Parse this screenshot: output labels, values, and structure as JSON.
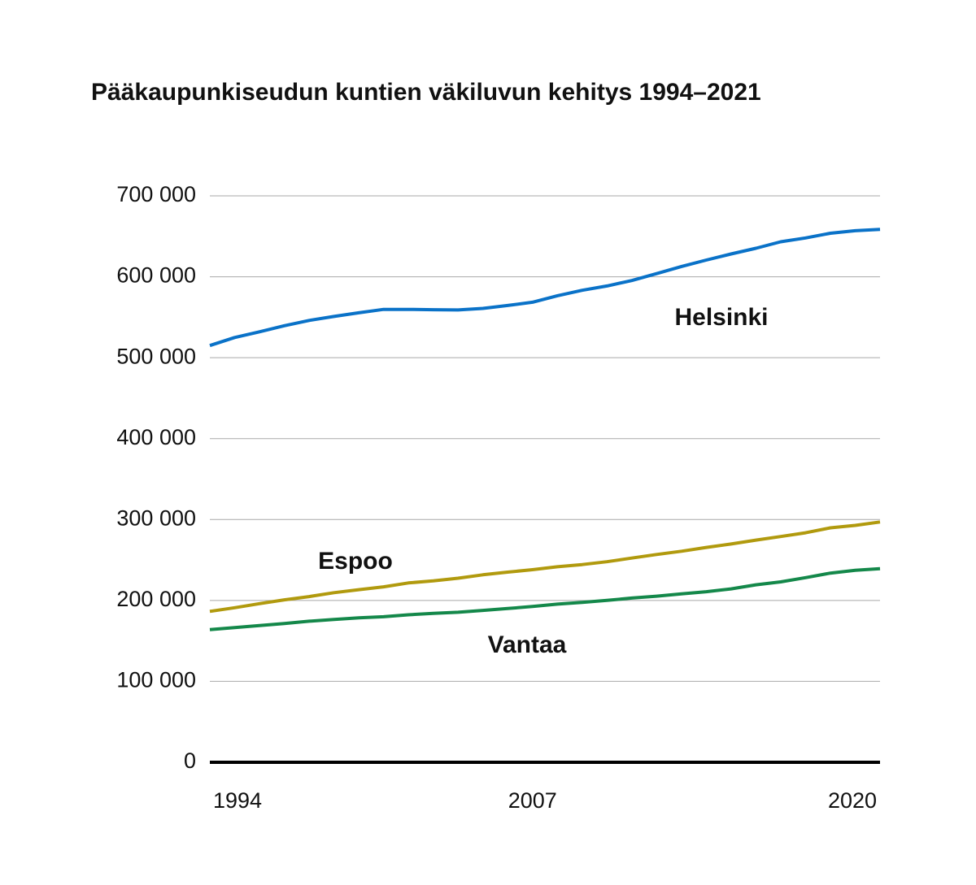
{
  "chart_data": {
    "type": "line",
    "title": "Pääkaupunkiseudun kuntien väkiluvun kehitys 1994–2021",
    "x": [
      1994,
      1995,
      1996,
      1997,
      1998,
      1999,
      2000,
      2001,
      2002,
      2003,
      2004,
      2005,
      2006,
      2007,
      2008,
      2009,
      2010,
      2011,
      2012,
      2013,
      2014,
      2015,
      2016,
      2017,
      2018,
      2019,
      2020,
      2021
    ],
    "series": [
      {
        "name": "Helsinki",
        "color": "#0a72c8",
        "values": [
          515000,
          525000,
          532000,
          539500,
          546000,
          551000,
          555500,
          559700,
          559700,
          559300,
          559000,
          560900,
          564500,
          568500,
          576600,
          583300,
          588600,
          595400,
          603900,
          612700,
          620700,
          628200,
          635200,
          643300,
          648000,
          653800,
          656900,
          658500
        ]
      },
      {
        "name": "Espoo",
        "color": "#b19a0e",
        "values": [
          186500,
          191000,
          196000,
          200800,
          204800,
          209600,
          213300,
          216800,
          221600,
          224200,
          227500,
          231700,
          235000,
          238000,
          241600,
          244300,
          247900,
          252400,
          256800,
          260800,
          265500,
          269800,
          274600,
          279000,
          283600,
          289700,
          292800,
          297000
        ]
      },
      {
        "name": "Vantaa",
        "color": "#14884a",
        "values": [
          164000,
          166500,
          169000,
          171500,
          174300,
          176600,
          178500,
          179900,
          182300,
          184000,
          185400,
          187700,
          190000,
          192500,
          195400,
          197600,
          200100,
          203000,
          205300,
          208100,
          210800,
          214300,
          219300,
          223000,
          228200,
          233800,
          237200,
          239200
        ]
      }
    ],
    "xlim": [
      1994,
      2021
    ],
    "xticks": [
      1994,
      2007,
      2020
    ],
    "ylim": [
      0,
      700000
    ],
    "yticks": [
      {
        "value": 0,
        "label": "0"
      },
      {
        "value": 100000,
        "label": "100 000"
      },
      {
        "value": 200000,
        "label": "200 000"
      },
      {
        "value": 300000,
        "label": "300 000"
      },
      {
        "value": 400000,
        "label": "400 000"
      },
      {
        "value": 500000,
        "label": "500 000"
      },
      {
        "value": 600000,
        "label": "600 000"
      },
      {
        "value": 700000,
        "label": "700 000"
      }
    ],
    "grid": true
  }
}
